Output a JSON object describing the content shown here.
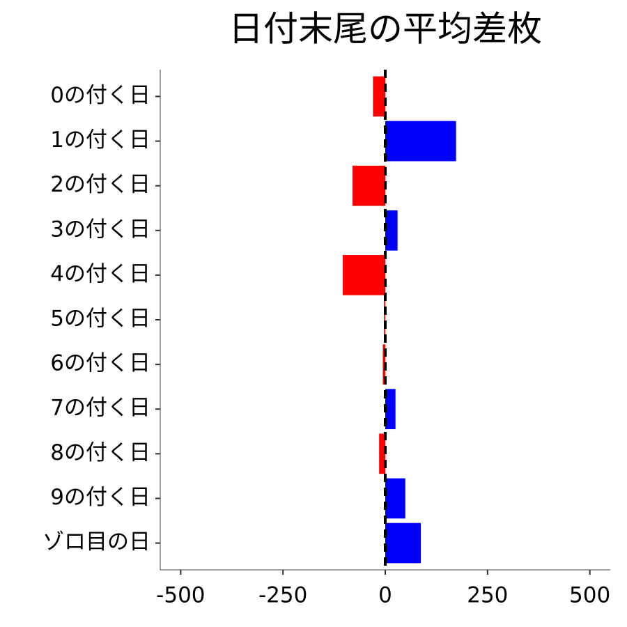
{
  "chart_data": {
    "type": "barh",
    "title": "日付末尾の平均差枚",
    "categories": [
      "0の付く日",
      "1の付く日",
      "2の付く日",
      "3の付く日",
      "4の付く日",
      "5の付く日",
      "6の付く日",
      "7の付く日",
      "8の付く日",
      "9の付く日",
      "ゾロ目の日"
    ],
    "values": [
      -30,
      173,
      -80,
      30,
      -104,
      -3,
      -6,
      25,
      -15,
      49,
      87
    ],
    "positive_color": "#0000ff",
    "negative_color": "#ff0000",
    "xlim": [
      -550,
      550
    ],
    "xticks": [
      -500,
      -250,
      0,
      250,
      500
    ],
    "reference_line": {
      "value": 0,
      "style": "dashed",
      "color": "#000000"
    },
    "grid": false
  }
}
